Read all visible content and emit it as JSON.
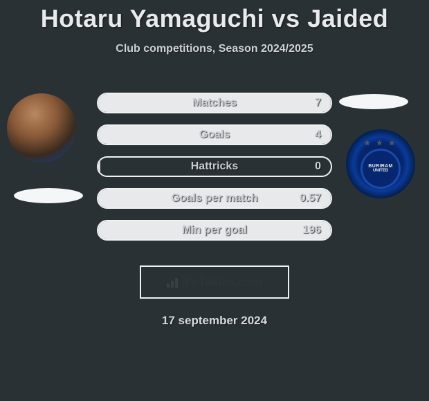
{
  "header": {
    "title": "Hotaru Yamaguchi vs Jaided",
    "subtitle": "Club competitions, Season 2024/2025"
  },
  "colors": {
    "background": "#2a3135",
    "text_primary": "#e8eaec",
    "text_secondary": "#d0d3d6",
    "pill_border": "#f0f1f3",
    "pill_fill": "#e8e9eb",
    "ellipse": "#f5f6f7",
    "club_primary": "#06266f"
  },
  "stats": [
    {
      "label": "Matches",
      "value": "7",
      "fill_pct": 100
    },
    {
      "label": "Goals",
      "value": "4",
      "fill_pct": 100
    },
    {
      "label": "Hattricks",
      "value": "0",
      "fill_pct": 1
    },
    {
      "label": "Goals per match",
      "value": "0.57",
      "fill_pct": 100
    },
    {
      "label": "Min per goal",
      "value": "196",
      "fill_pct": 100
    }
  ],
  "club": {
    "name": "BURIRAM",
    "sub": "UNITED"
  },
  "footer": {
    "brand": "FcTables.com",
    "date": "17 september 2024"
  }
}
